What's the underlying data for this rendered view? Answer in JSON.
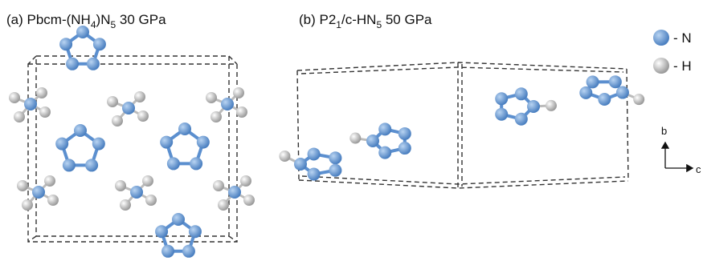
{
  "panels": [
    {
      "title": [
        "(a) Pbcm-(NH",
        "4",
        ")N",
        "5",
        " 30 GPa"
      ]
    },
    {
      "title": [
        "(b) P2",
        "1",
        "/c-HN",
        "5",
        " 50 GPa"
      ]
    }
  ],
  "legend": [
    "- N",
    "- H"
  ],
  "axes": [
    "b",
    "c"
  ]
}
